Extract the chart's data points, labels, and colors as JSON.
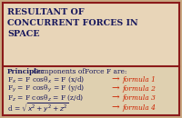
{
  "bg_outer": "#c8a882",
  "bg_title": "#e8d5b8",
  "bg_body": "#dfd0b0",
  "border_color": "#8b1a1a",
  "title_lines": [
    "RESULTANT OF",
    "CONCURRENT FORCES IN",
    "SPACE"
  ],
  "title_color": "#1a1a5e",
  "principle_bold": "Principle:",
  "principle_rest": " Components ofForce F are:",
  "formula_color": "#1a1a5e",
  "arrow_color": "#cc2200",
  "italic_color": "#cc2200",
  "formula_lefts": [
    "F$_x$ = F cosθ$_x$ = F (x/d)",
    "F$_y$ = F cosθ$_y$ = F (y/d)",
    "F$_z$ = F cosθ$_z$ = F (z/d)"
  ],
  "formula_rights": [
    "formula 1",
    "formula 2",
    "formula 3"
  ],
  "last_formula": "d = $\\sqrt{x^2+y^2+z^2}$",
  "last_right": "formula 4",
  "title_fontsize": 6.8,
  "body_fontsize": 5.4,
  "italic_fontsize": 5.4
}
